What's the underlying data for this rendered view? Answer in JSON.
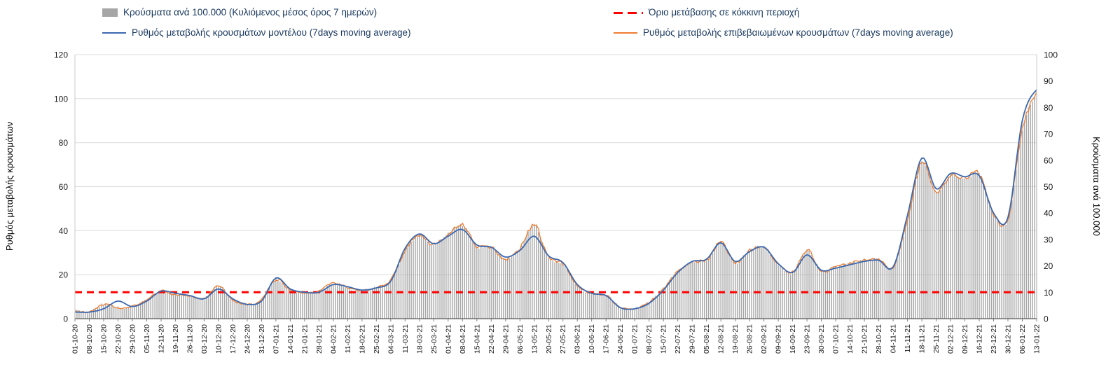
{
  "chart_data": {
    "type": "composite",
    "title": "",
    "x_axis": {
      "labels_weekly": [
        "01-10-20",
        "08-10-20",
        "15-10-20",
        "22-10-20",
        "29-10-20",
        "05-11-20",
        "12-11-20",
        "19-11-20",
        "26-11-20",
        "03-12-20",
        "10-12-20",
        "17-12-20",
        "24-12-20",
        "31-12-20",
        "07-01-21",
        "14-01-21",
        "21-01-21",
        "28-01-21",
        "04-02-21",
        "11-02-21",
        "18-02-21",
        "25-02-21",
        "04-03-21",
        "11-03-21",
        "18-03-21",
        "25-03-21",
        "01-04-21",
        "08-04-21",
        "15-04-21",
        "22-04-21",
        "29-04-21",
        "06-05-21",
        "13-05-21",
        "20-05-21",
        "27-05-21",
        "03-06-21",
        "10-06-21",
        "17-06-21",
        "24-06-21",
        "01-07-21",
        "08-07-21",
        "15-07-21",
        "22-07-21",
        "29-07-21",
        "05-08-21",
        "12-08-21",
        "19-08-21",
        "26-08-21",
        "02-09-21",
        "09-09-21",
        "16-09-21",
        "23-09-21",
        "30-09-21",
        "07-10-21",
        "14-10-21",
        "21-10-21",
        "28-10-21",
        "04-11-21",
        "11-11-21",
        "18-11-21",
        "25-11-21",
        "02-12-21",
        "09-12-21",
        "16-12-21",
        "23-12-21",
        "30-12-21",
        "06-01-22",
        "13-01-22"
      ],
      "points_per_week": 7
    },
    "left_axis": {
      "label": "Ρυθμός μεταβολής κρουσμάτων",
      "min": 0,
      "max": 120,
      "step": 20
    },
    "right_axis": {
      "label": "Κρούσματα ανά 100.000",
      "min": 0,
      "max": 100,
      "step": 10
    },
    "threshold": {
      "label": "Όριο μετάβασης σε κόκκινη περιοχή",
      "axis": "right",
      "value": 10,
      "color": "#FF0000",
      "style": "dashed"
    },
    "grid": "horizontal",
    "legend_position": "top",
    "series": [
      {
        "name": "Κρούσματα ανά 100.000 (Κυλιόμενος μέσος όρος 7 ημερών)",
        "type": "bar",
        "axis": "right",
        "color": "#A6A6A6",
        "weekly_values": [
          2.9,
          2.5,
          5.4,
          4.2,
          4.6,
          7.1,
          10.4,
          9.2,
          8.8,
          7.5,
          12.5,
          7.1,
          5.4,
          7.1,
          15.0,
          10.8,
          10.0,
          10.4,
          13.3,
          11.7,
          10.4,
          12.1,
          14.6,
          25.8,
          31.7,
          27.9,
          32.1,
          35.4,
          27.5,
          27.1,
          22.5,
          26.7,
          35.4,
          23.3,
          20.8,
          12.5,
          9.6,
          8.8,
          4.2,
          3.8,
          6.3,
          11.3,
          17.9,
          21.7,
          22.1,
          28.8,
          21.3,
          25.8,
          27.1,
          20.4,
          17.5,
          25.8,
          18.3,
          19.6,
          20.8,
          22.1,
          22.5,
          19.6,
          37.5,
          59.2,
          48.3,
          54.2,
          52.9,
          54.6,
          39.6,
          37.5,
          71.7,
          85.0
        ]
      },
      {
        "name": "Ρυθμός μεταβολής κρουσμάτων μοντέλου (7days moving average)",
        "type": "line",
        "axis": "left",
        "color": "#3C69B0",
        "weekly_values": [
          3,
          3,
          4.5,
          8,
          5.5,
          8,
          12.5,
          11.5,
          10.5,
          9,
          13.5,
          9,
          6.5,
          8,
          18.5,
          13.5,
          12,
          12,
          15.5,
          14.5,
          13,
          14,
          17,
          32,
          38.5,
          34,
          37.5,
          40.5,
          33.5,
          32.5,
          28,
          31,
          37.5,
          28.5,
          25.5,
          15.5,
          11.5,
          10.5,
          5,
          4.5,
          7,
          13,
          21,
          26,
          27,
          34.5,
          26,
          30.5,
          32.5,
          25,
          21,
          29,
          22,
          23,
          24.5,
          26,
          26.5,
          23.5,
          47,
          73,
          59,
          66,
          64.5,
          65,
          48,
          46,
          90,
          104
        ]
      },
      {
        "name": "Ρυθμός μεταβολής επιβεβαιωμένων κρουσμάτων (7days moving average)",
        "type": "line",
        "axis": "left",
        "color": "#ED7D31",
        "weekly_values": [
          3.5,
          3,
          6.5,
          5,
          5.5,
          8.5,
          12.5,
          11,
          10.5,
          9,
          15,
          8.5,
          6.5,
          8.5,
          18,
          13,
          12,
          12.5,
          16,
          14,
          12.5,
          14.5,
          17.5,
          31,
          38,
          33.5,
          38.5,
          42.5,
          33,
          32.5,
          27,
          32,
          42.5,
          28,
          25,
          15,
          11.5,
          10.5,
          5,
          4.5,
          7.5,
          13.5,
          21.5,
          26,
          26.5,
          34.5,
          25.5,
          31,
          32.5,
          24.5,
          21,
          31,
          22,
          23.5,
          25,
          26.5,
          27,
          23.5,
          45,
          71,
          58,
          65,
          63.5,
          65.5,
          47.5,
          45,
          86,
          102
        ]
      }
    ]
  }
}
